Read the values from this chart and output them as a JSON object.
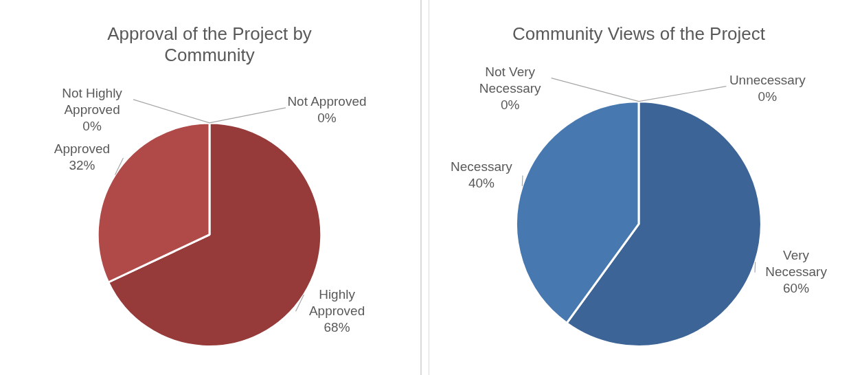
{
  "chart_data": [
    {
      "type": "pie",
      "title": "Approval of the Project by Community",
      "categories": [
        "Highly Approved",
        "Approved",
        "Not Highly Approved",
        "Not Approved"
      ],
      "values": [
        68,
        32,
        0,
        0
      ],
      "colors": [
        "#963a3a",
        "#b04a48",
        "#c77a78",
        "#d9a3a1"
      ],
      "value_labels": [
        "68%",
        "32%",
        "0%",
        "0%"
      ],
      "legend": false
    },
    {
      "type": "pie",
      "title": "Community Views of the Project",
      "categories": [
        "Very Necessary",
        "Necessary",
        "Not Very Necessary",
        "Unnecessary"
      ],
      "values": [
        60,
        40,
        0,
        0
      ],
      "colors": [
        "#3c6496",
        "#4778b0",
        "#7497c4",
        "#9fb6d6"
      ],
      "value_labels": [
        "60%",
        "40%",
        "0%",
        "0%"
      ],
      "legend": false
    }
  ]
}
